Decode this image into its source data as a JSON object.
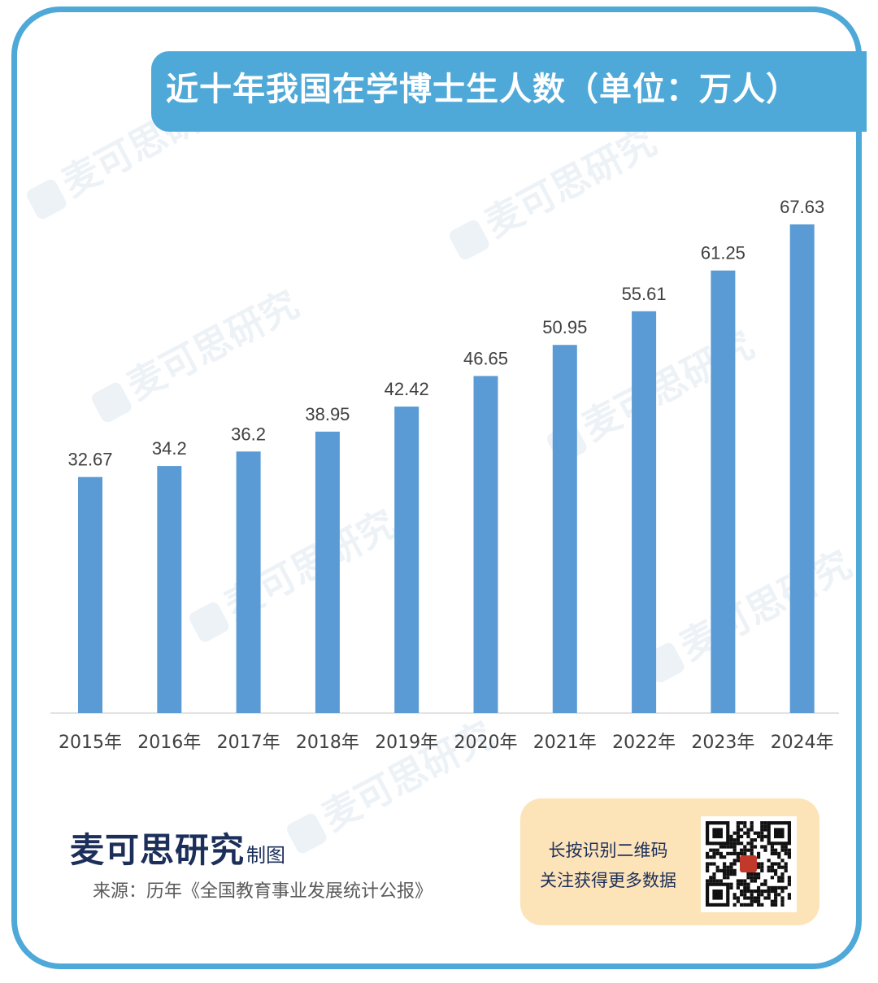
{
  "title": "近十年我国在学博士生人数（单位：万人）",
  "watermark": "麦可思研究",
  "brand": {
    "name": "麦可思研究",
    "suffix": "制图"
  },
  "source": "来源：历年《全国教育事业发展统计公报》",
  "qr": {
    "line1": "长按识别二维码",
    "line2": "关注获得更多数据"
  },
  "colors": {
    "accent": "#4fa9d8",
    "bar": "#5b9bd5",
    "qr_panel": "#fde3b8",
    "brand_text": "#1c2f5a"
  },
  "chart_data": {
    "type": "bar",
    "categories": [
      "2015年",
      "2016年",
      "2017年",
      "2018年",
      "2019年",
      "2020年",
      "2021年",
      "2022年",
      "2023年",
      "2024年"
    ],
    "values": [
      32.67,
      34.2,
      36.2,
      38.95,
      42.42,
      46.65,
      50.95,
      55.61,
      61.25,
      67.63
    ],
    "value_labels": [
      "32.67",
      "34.2",
      "36.2",
      "38.95",
      "42.42",
      "46.65",
      "50.95",
      "55.61",
      "61.25",
      "67.63"
    ],
    "ylim": [
      0,
      67.63
    ],
    "grid": false,
    "legend": "none"
  }
}
